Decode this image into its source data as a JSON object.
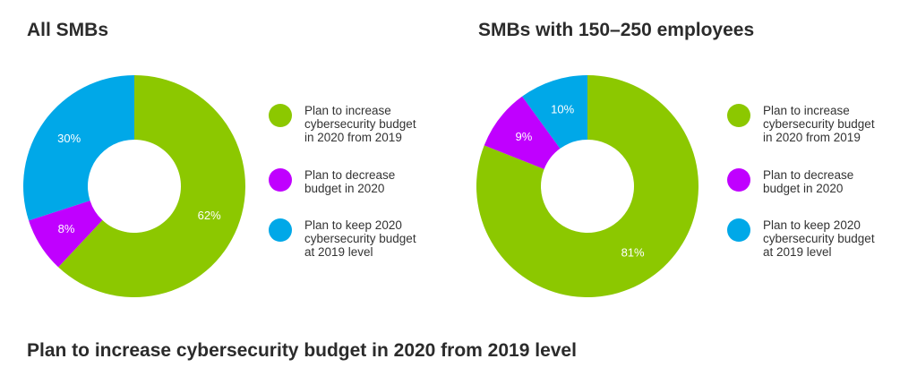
{
  "chart_data": [
    {
      "type": "pie",
      "title": "All SMBs",
      "colors": [
        "#8cc800",
        "#c000ff",
        "#00a8e8"
      ],
      "categories": [
        "Plan to increase cybersecurity budget in 2020 from 2019",
        "Plan to decrease budget in 2020",
        "Plan to keep 2020 cybersecurity budget at 2019 level"
      ],
      "values": [
        62,
        8,
        30
      ],
      "data_labels": [
        "62%",
        "8%",
        "30%"
      ]
    },
    {
      "type": "pie",
      "title": "SMBs with 150–250 employees",
      "colors": [
        "#8cc800",
        "#c000ff",
        "#00a8e8"
      ],
      "categories": [
        "Plan to increase cybersecurity budget in 2020 from 2019",
        "Plan to decrease budget in 2020",
        "Plan to keep 2020 cybersecurity budget at 2019 level"
      ],
      "values": [
        81,
        9,
        10
      ],
      "data_labels": [
        "81%",
        "9%",
        "10%"
      ]
    }
  ],
  "legend": [
    {
      "label": "Plan to increase\ncybersecurity budget\nin 2020 from 2019",
      "color": "#8cc800"
    },
    {
      "label": "Plan to decrease\nbudget in 2020",
      "color": "#c000ff"
    },
    {
      "label": "Plan to keep 2020\ncybersecurity budget\nat 2019 level",
      "color": "#00a8e8"
    }
  ],
  "footer_title": "Plan to increase cybersecurity budget in 2020 from 2019 level"
}
